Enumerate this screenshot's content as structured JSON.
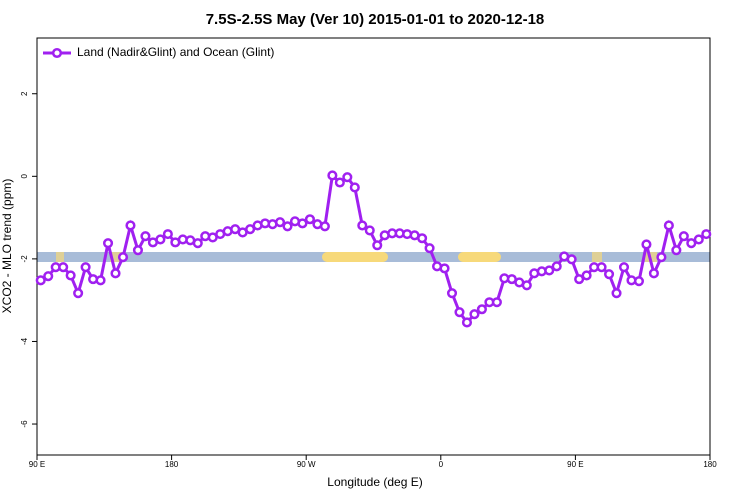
{
  "chart_data": {
    "type": "line",
    "title": "7.5S-2.5S May (Ver 10)   2015-01-01 to 2020-12-18",
    "xlabel": "Longitude (deg E)",
    "ylabel": "XCO2 - MLO trend (ppm)",
    "x": [
      92.5,
      97.5,
      102.5,
      107.5,
      112.5,
      117.5,
      122.5,
      127.5,
      132.5,
      137.5,
      142.5,
      147.5,
      152.5,
      157.5,
      162.5,
      167.5,
      172.5,
      177.5,
      182.5,
      187.5,
      192.5,
      197.5,
      202.5,
      207.5,
      212.5,
      217.5,
      222.5,
      227.5,
      232.5,
      237.5,
      242.5,
      247.5,
      252.5,
      257.5,
      262.5,
      267.5,
      272.5,
      277.5,
      282.5,
      287.5,
      292.5,
      297.5,
      302.5,
      307.5,
      312.5,
      317.5,
      322.5,
      327.5,
      332.5,
      337.5,
      342.5,
      347.5,
      352.5,
      357.5,
      362.5,
      367.5,
      372.5,
      377.5,
      382.5,
      387.5,
      392.5,
      397.5,
      402.5,
      407.5,
      412.5,
      417.5,
      422.5,
      427.5,
      432.5,
      437.5,
      442.5,
      447.5,
      452.5,
      457.5,
      462.5,
      467.5,
      472.5,
      477.5,
      482.5,
      487.5,
      492.5,
      497.5,
      502.5,
      507.5,
      512.5,
      517.5,
      522.5,
      527.5,
      532.5,
      537.5
    ],
    "series": [
      {
        "name": "Land (Nadir&Glint) and Ocean (Glint)",
        "color": "#a020f0",
        "values": [
          -2.52,
          -2.42,
          -2.2,
          -2.2,
          -2.4,
          -2.83,
          -2.2,
          -2.49,
          -2.52,
          -1.62,
          -2.35,
          -1.96,
          -1.19,
          -1.79,
          -1.45,
          -1.6,
          -1.53,
          -1.4,
          -1.6,
          -1.53,
          -1.55,
          -1.62,
          -1.45,
          -1.48,
          -1.4,
          -1.33,
          -1.28,
          -1.36,
          -1.28,
          -1.19,
          -1.14,
          -1.16,
          -1.11,
          -1.21,
          -1.09,
          -1.14,
          -1.04,
          -1.16,
          -1.21,
          0.02,
          -0.15,
          -0.02,
          -0.27,
          -1.19,
          -1.31,
          -1.67,
          -1.43,
          -1.38,
          -1.38,
          -1.4,
          -1.43,
          -1.5,
          -1.74,
          -2.18,
          -2.23,
          -2.83,
          -3.29,
          -3.54,
          -3.34,
          -3.22,
          -3.05,
          -3.05,
          -2.47,
          -2.49,
          -2.57,
          -2.64,
          -2.35,
          -2.3,
          -2.28,
          -2.18,
          -1.94,
          -2.01,
          -2.49,
          -2.4,
          -2.2,
          -2.2,
          -2.37,
          -2.83,
          -2.2,
          -2.52,
          -2.54,
          -1.65,
          -2.35,
          -1.96,
          -1.19,
          -1.79,
          -1.45,
          -1.62,
          -1.53,
          -1.4
        ]
      }
    ],
    "xlim": [
      90,
      540
    ],
    "xticks": [
      {
        "value": 90,
        "label": "90 E"
      },
      {
        "value": 180,
        "label": "180"
      },
      {
        "value": 270,
        "label": "90 W"
      },
      {
        "value": 360,
        "label": "0"
      },
      {
        "value": 450,
        "label": "90 E"
      },
      {
        "value": 540,
        "label": "180"
      }
    ],
    "ylim": [
      -6.75,
      3.35
    ],
    "yticks": [
      -6,
      -4,
      -2,
      0,
      2
    ],
    "legend": "top-left"
  }
}
